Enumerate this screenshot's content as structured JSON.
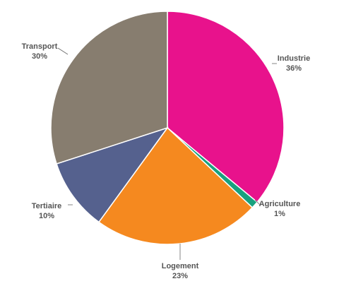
{
  "chart_data": {
    "type": "pie",
    "slices": [
      {
        "name": "Industrie",
        "value": 36,
        "label": "36%",
        "color": "#E8128C"
      },
      {
        "name": "Agriculture",
        "value": 1,
        "label": "1%",
        "color": "#19A17E"
      },
      {
        "name": "Logement",
        "value": 23,
        "label": "23%",
        "color": "#F5891F"
      },
      {
        "name": "Tertiaire",
        "value": 10,
        "label": "10%",
        "color": "#55618E"
      },
      {
        "name": "Transport",
        "value": 30,
        "label": "30%",
        "color": "#877D6F"
      }
    ],
    "start_angle_deg": 0,
    "direction": "clockwise",
    "legend": "none"
  }
}
